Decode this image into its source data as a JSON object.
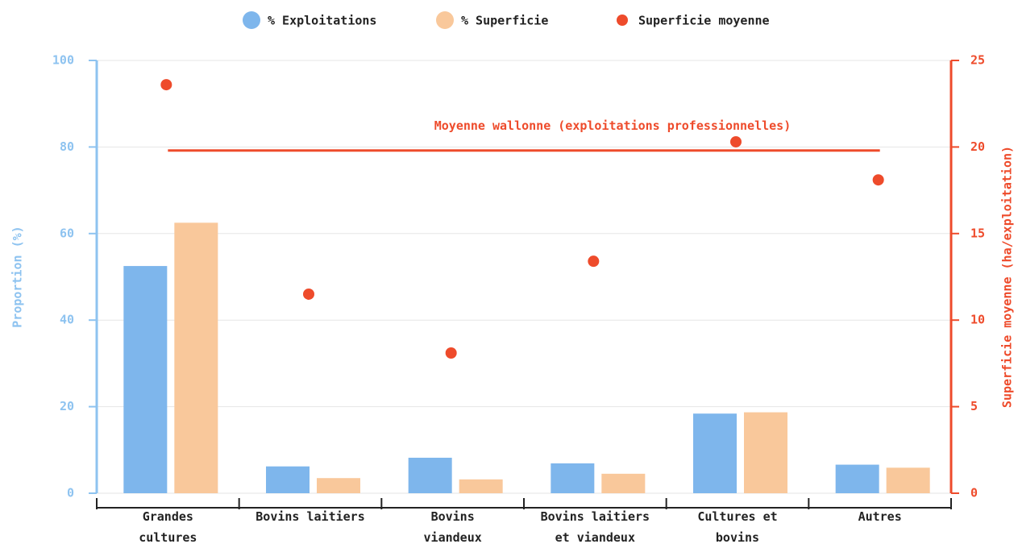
{
  "chart_data": {
    "type": "bar",
    "categories": [
      "Grandes\ncultures",
      "Bovins laitiers",
      "Bovins\nviandeux",
      "Bovins laitiers\net viandeux",
      "Cultures et\nbovins",
      "Autres"
    ],
    "series": [
      {
        "name": "% Exploitations",
        "type": "bar",
        "color": "#7eb6ec",
        "values": [
          52.5,
          6.2,
          8.2,
          6.9,
          18.4,
          6.6
        ]
      },
      {
        "name": "% Superficie",
        "type": "bar",
        "color": "#f9c89b",
        "values": [
          62.5,
          3.5,
          3.2,
          4.5,
          18.7,
          5.9
        ]
      },
      {
        "name": "Superficie moyenne",
        "type": "scatter",
        "axis": "y2",
        "color": "#ee4b2b",
        "values": [
          23.6,
          11.5,
          8.1,
          13.4,
          20.3,
          18.1
        ]
      }
    ],
    "y_label": "Proportion (%)",
    "y2_label": "Superficie moyenne (ha/exploitation)",
    "ylim": [
      0,
      100
    ],
    "yticks": [
      0,
      20,
      40,
      60,
      80,
      100
    ],
    "y2lim": [
      0,
      25
    ],
    "y2ticks": [
      0,
      5,
      10,
      15,
      20,
      25
    ],
    "reference_line": {
      "axis": "y2",
      "value": 19.8,
      "label": "Moyenne wallonne (exploitations professionnelles)",
      "color": "#ee4b2b"
    },
    "grid": true,
    "legend": "top",
    "y_color": "#8ec3f0",
    "y2_color": "#ee4b2b"
  }
}
